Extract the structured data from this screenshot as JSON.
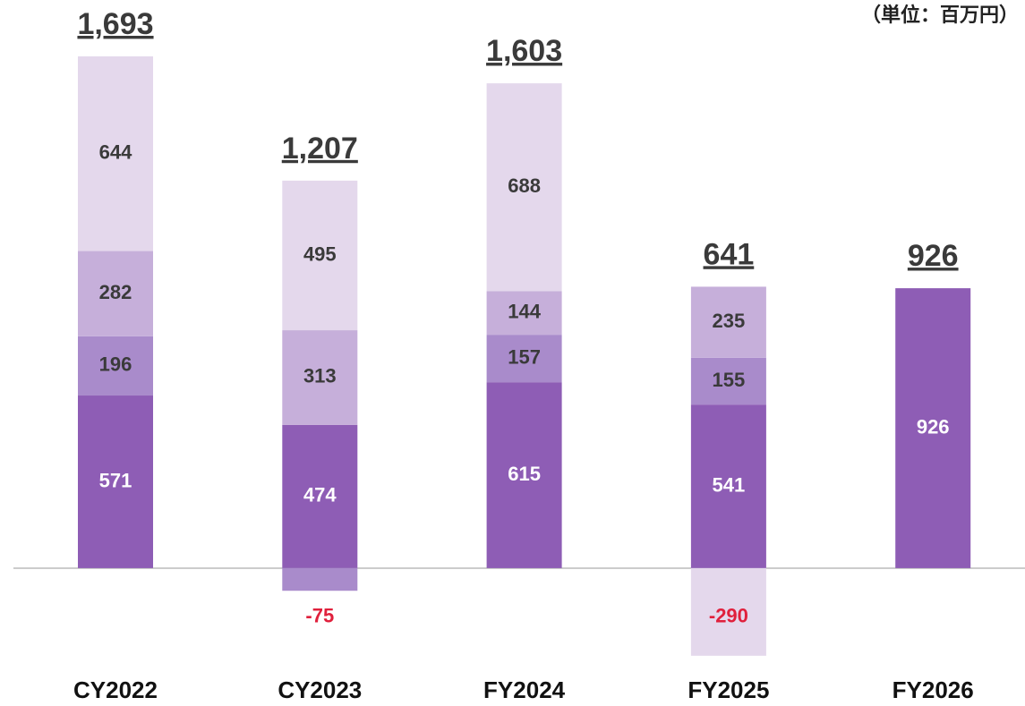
{
  "chart_data": {
    "type": "stacked_bar",
    "annotation": "（単位：百万円）",
    "categories": [
      "CY2022",
      "CY2023",
      "FY2024",
      "FY2025",
      "FY2026"
    ],
    "series": [
      {
        "color": "#8e5db5",
        "values": [
          571,
          474,
          615,
          541,
          926
        ]
      },
      {
        "color": "#a98bcb",
        "values": [
          196,
          -75,
          157,
          155,
          null
        ]
      },
      {
        "color": "#c6afda",
        "values": [
          282,
          313,
          144,
          235,
          null
        ]
      },
      {
        "color": "#e4d8ec",
        "values": [
          644,
          495,
          688,
          -290,
          null
        ]
      }
    ],
    "totals": {
      "values": [
        1693,
        1207,
        1603,
        641,
        926
      ],
      "value_labels": [
        "1,693",
        "1,207",
        "1,603",
        "641",
        "926"
      ]
    },
    "negative_label_color": "#e0203c",
    "ylim": [
      -400,
      1850
    ]
  }
}
